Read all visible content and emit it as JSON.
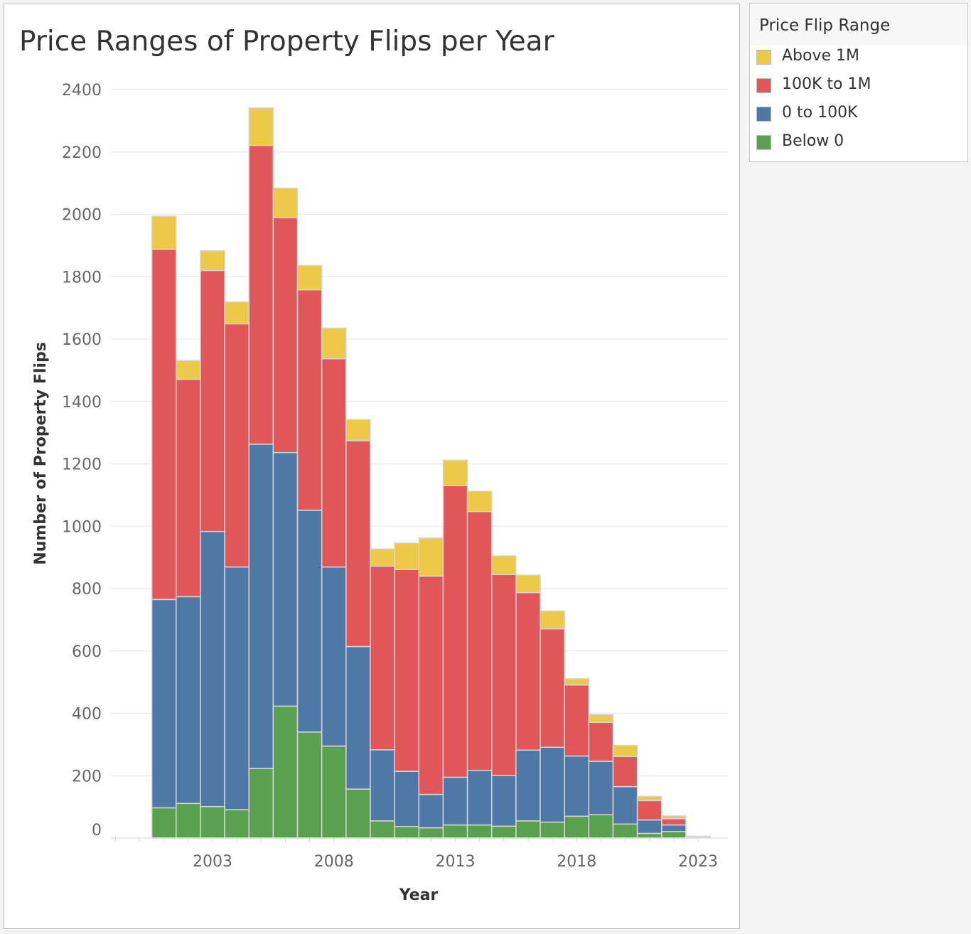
{
  "chart_data": {
    "type": "bar",
    "stacked": true,
    "title": "Price Ranges of Property Flips per Year",
    "xlabel": "Year",
    "ylabel": "Number of Property Flips",
    "x_tick_labels": [
      "2003",
      "2008",
      "2013",
      "2018",
      "2023"
    ],
    "y_tick_labels": [
      "0",
      "200",
      "400",
      "600",
      "800",
      "1000",
      "1200",
      "1400",
      "1600",
      "1800",
      "2000",
      "2200",
      "2400"
    ],
    "ylim": [
      0,
      2400
    ],
    "xlim": [
      1998.5,
      2024.2
    ],
    "grid": "horizontal",
    "legend_title": "Price Flip Range",
    "legend_position": "right",
    "categories": [
      2001,
      2002,
      2003,
      2004,
      2005,
      2006,
      2007,
      2008,
      2009,
      2010,
      2011,
      2012,
      2013,
      2014,
      2015,
      2016,
      2017,
      2018,
      2019,
      2020,
      2021,
      2022,
      2023
    ],
    "series": [
      {
        "name": "Below 0",
        "color": "#59a14f",
        "values": [
          97,
          111,
          101,
          91,
          223,
          423,
          340,
          295,
          157,
          55,
          37,
          33,
          42,
          42,
          38,
          55,
          51,
          70,
          75,
          45,
          15,
          21,
          0
        ]
      },
      {
        "name": "0 to 100K",
        "color": "#4e79a7",
        "values": [
          668,
          663,
          882,
          778,
          1040,
          813,
          711,
          574,
          457,
          228,
          177,
          107,
          153,
          175,
          162,
          227,
          240,
          193,
          171,
          120,
          43,
          21,
          2
        ]
      },
      {
        "name": "100K to 1M",
        "color": "#e15759",
        "values": [
          1123,
          697,
          837,
          780,
          958,
          753,
          707,
          668,
          660,
          589,
          647,
          700,
          935,
          830,
          645,
          505,
          380,
          228,
          125,
          97,
          62,
          20,
          2
        ]
      },
      {
        "name": "Above 1M",
        "color": "#edc948",
        "values": [
          106,
          60,
          63,
          70,
          120,
          95,
          78,
          98,
          68,
          55,
          85,
          122,
          82,
          65,
          60,
          56,
          57,
          20,
          25,
          35,
          14,
          9,
          2
        ]
      }
    ]
  }
}
